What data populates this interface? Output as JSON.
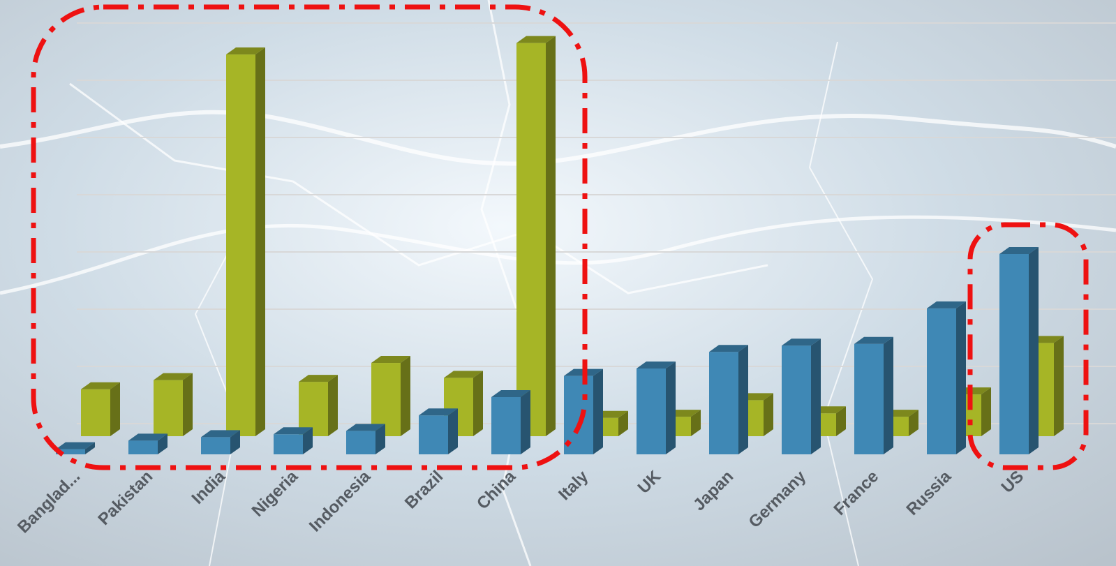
{
  "chart_data": {
    "type": "bar3d",
    "categories": [
      "Banglad...",
      "Pakistan",
      "India",
      "Nigeria",
      "Indonesia",
      "Brazil",
      "China",
      "Italy",
      "UK",
      "Japan",
      "Germany",
      "France",
      "Russia",
      "US"
    ],
    "series": [
      {
        "color": "#3f88b5",
        "values": [
          0.09,
          0.24,
          0.3,
          0.35,
          0.41,
          0.68,
          1.0,
          1.37,
          1.5,
          1.79,
          1.9,
          1.93,
          2.55,
          3.5
        ]
      },
      {
        "color": "#a6b526",
        "values": [
          0.82,
          0.98,
          6.67,
          0.95,
          1.28,
          1.02,
          6.87,
          0.32,
          0.34,
          0.63,
          0.4,
          0.34,
          0.73,
          1.63
        ]
      }
    ],
    "ylim": [
      0,
      7.4
    ],
    "yticks": [
      0,
      1,
      2,
      3,
      4,
      5,
      6,
      7
    ],
    "grid": true
  }
}
